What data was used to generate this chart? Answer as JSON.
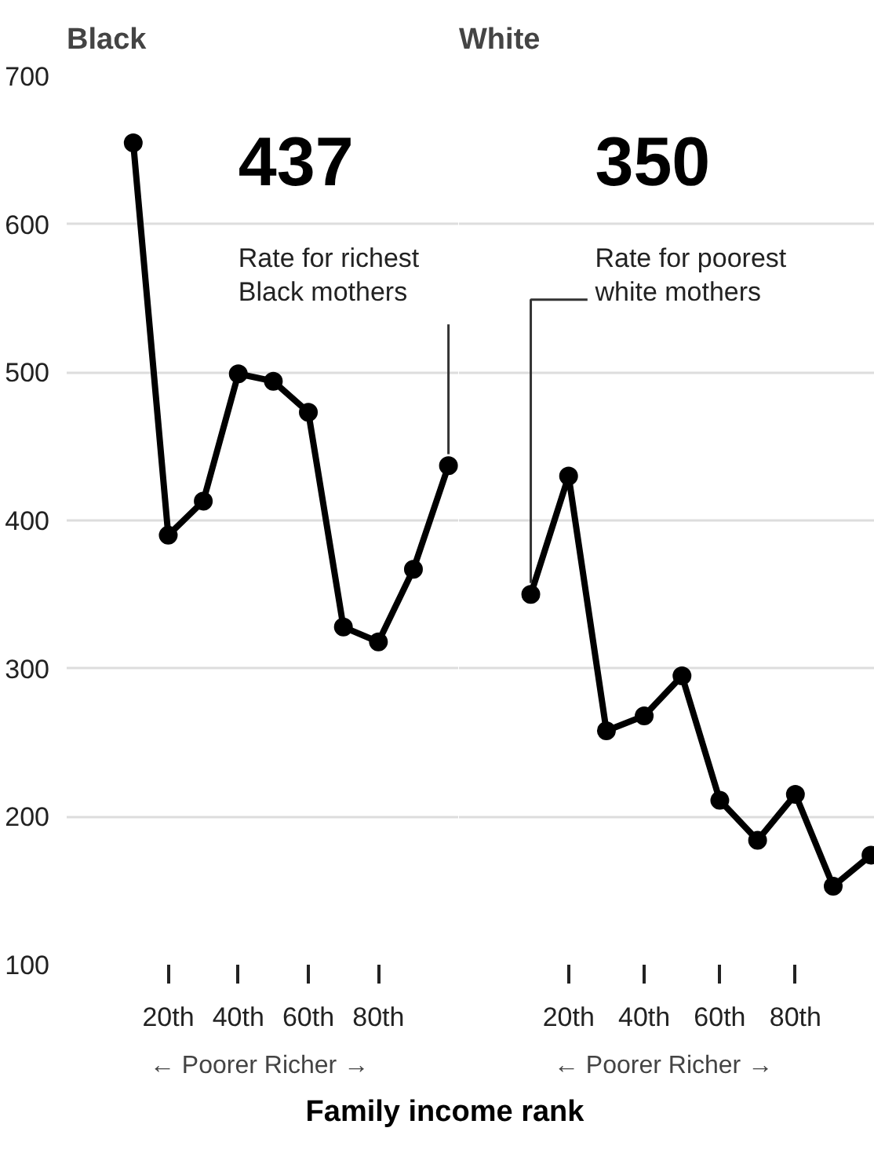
{
  "chart_data": [
    {
      "type": "line",
      "title": "Black",
      "xlabel": "← Poorer  Richer →",
      "x": [
        10,
        20,
        30,
        40,
        50,
        60,
        70,
        80,
        90,
        100
      ],
      "series": [
        {
          "color": "#000000",
          "values": [
            655,
            390,
            413,
            499,
            494,
            473,
            328,
            318,
            367,
            437
          ]
        }
      ],
      "xlim": [
        -9,
        103
      ],
      "ylim": [
        100,
        700
      ],
      "xticks": [
        {
          "value": 20,
          "label": "20th"
        },
        {
          "value": 40,
          "label": "40th"
        },
        {
          "value": 60,
          "label": "60th"
        },
        {
          "value": 80,
          "label": "80th"
        }
      ],
      "yticks": [
        100,
        200,
        300,
        400,
        500,
        600,
        700
      ],
      "grid": "y",
      "marker": "circle",
      "line_style": "solid",
      "annotations": [
        "437",
        {
          "text": "Rate for richest\nBlack mothers",
          "x": 100,
          "y": 437
        },
        "Family income rank"
      ]
    },
    {
      "type": "line",
      "title": "White",
      "xlabel": "← Poorer  Richer →",
      "x": [
        10,
        20,
        30,
        40,
        50,
        60,
        70,
        80,
        90,
        100
      ],
      "series": [
        {
          "color": "#000000",
          "values": [
            350,
            430,
            258,
            268,
            295,
            211,
            184,
            215,
            153,
            174
          ]
        }
      ],
      "xlim": [
        -9,
        101
      ],
      "ylim": [
        100,
        700
      ],
      "xticks": [
        {
          "value": 20,
          "label": "20th"
        },
        {
          "value": 40,
          "label": "40th"
        },
        {
          "value": 60,
          "label": "60th"
        },
        {
          "value": 80,
          "label": "80th"
        }
      ],
      "yticks": [
        100,
        200,
        300,
        400,
        500,
        600,
        700
      ],
      "grid": "y",
      "marker": "circle",
      "line_style": "solid",
      "tick_labels": "x",
      "annotations": [
        "350",
        {
          "text": "Rate for poorest\nwhite mothers",
          "x": 10,
          "y": 350
        }
      ]
    }
  ]
}
